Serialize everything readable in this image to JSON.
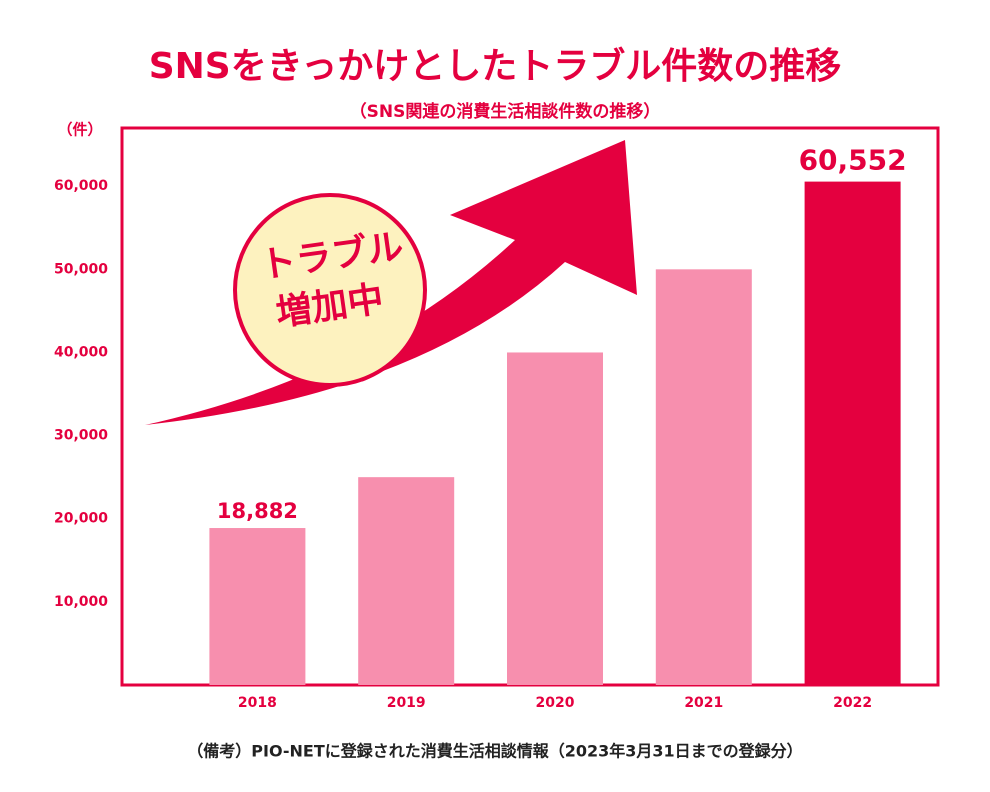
{
  "chart_data": {
    "type": "bar",
    "title": "SNSをきっかけとしたトラブル件数の推移",
    "subtitle": "（SNS関連の消費生活相談件数の推移）",
    "y_axis_label": "（件）",
    "annotation": [
      "トラブル",
      "増加中"
    ],
    "note": "（備考）PIO-NETに登録された消費生活相談情報（2023年3月31日までの登録分）",
    "categories": [
      "2018",
      "2019",
      "2020",
      "2021",
      "2022"
    ],
    "values": [
      18882,
      25000,
      40000,
      50000,
      60552
    ],
    "value_labels": [
      "18,882",
      null,
      null,
      null,
      "60,552"
    ],
    "colors": [
      "#f78fae",
      "#f78fae",
      "#f78fae",
      "#f78fae",
      "#e4003f"
    ],
    "ylim": [
      0,
      67000
    ],
    "yticks": [
      {
        "value": 10000,
        "label": "10,000"
      },
      {
        "value": 20000,
        "label": "20,000"
      },
      {
        "value": 30000,
        "label": "30,000"
      },
      {
        "value": 40000,
        "label": "40,000"
      },
      {
        "value": 50000,
        "label": "50,000"
      },
      {
        "value": 60000,
        "label": "60,000"
      }
    ],
    "grid": false
  }
}
